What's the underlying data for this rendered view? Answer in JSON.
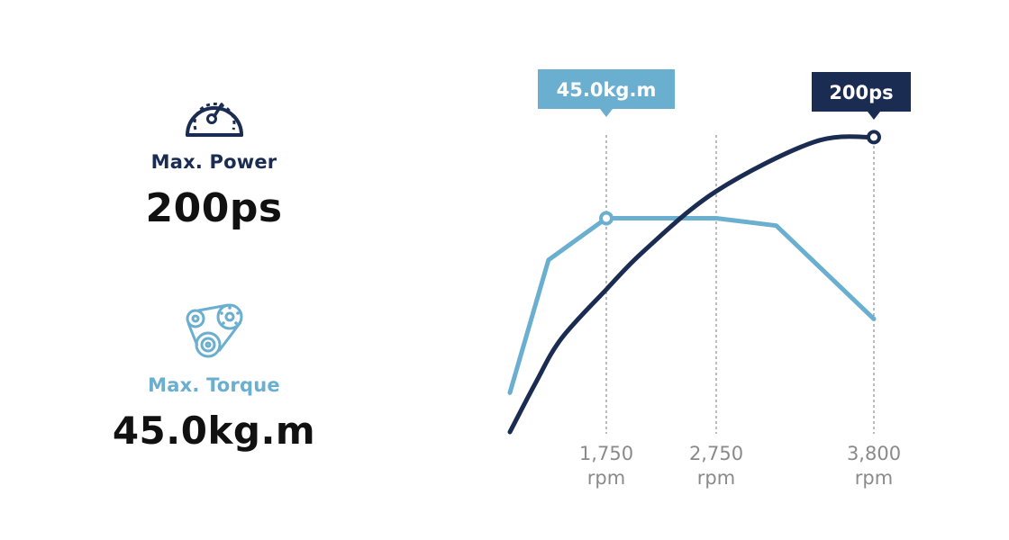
{
  "specs": {
    "power": {
      "label": "Max. Power",
      "value": "200ps",
      "icon": "speedometer-icon",
      "color": "#1b2c52"
    },
    "torque": {
      "label": "Max. Torque",
      "value": "45.0kg.m",
      "icon": "belt-pulley-icon",
      "color": "#6aaed0"
    }
  },
  "chart_data": {
    "type": "line",
    "title": "",
    "xlabel": "",
    "ylabel": "",
    "x_ticks": [
      {
        "value": 1750,
        "line1": "1,750",
        "line2": "rpm"
      },
      {
        "value": 2750,
        "line1": "2,750",
        "line2": "rpm"
      },
      {
        "value": 3800,
        "line1": "3,800",
        "line2": "rpm"
      }
    ],
    "grid": false,
    "series": [
      {
        "id": "torque",
        "color": "#6aaed0",
        "points": [
          [
            1000,
            16
          ],
          [
            1300,
            70
          ],
          [
            1750,
            87
          ],
          [
            2750,
            87
          ],
          [
            3150,
            84
          ],
          [
            3800,
            46
          ]
        ],
        "callout": {
          "text": "45.0kg.m",
          "x": 1750,
          "y": 87
        }
      },
      {
        "id": "power",
        "color": "#1b2c52",
        "points": [
          [
            1000,
            0
          ],
          [
            1200,
            20
          ],
          [
            1400,
            38
          ],
          [
            1750,
            58
          ],
          [
            2100,
            74
          ],
          [
            2750,
            98
          ],
          [
            3400,
            118
          ],
          [
            3800,
            120
          ]
        ],
        "callout": {
          "text": "200ps",
          "x": 3800,
          "y": 120
        }
      }
    ]
  }
}
